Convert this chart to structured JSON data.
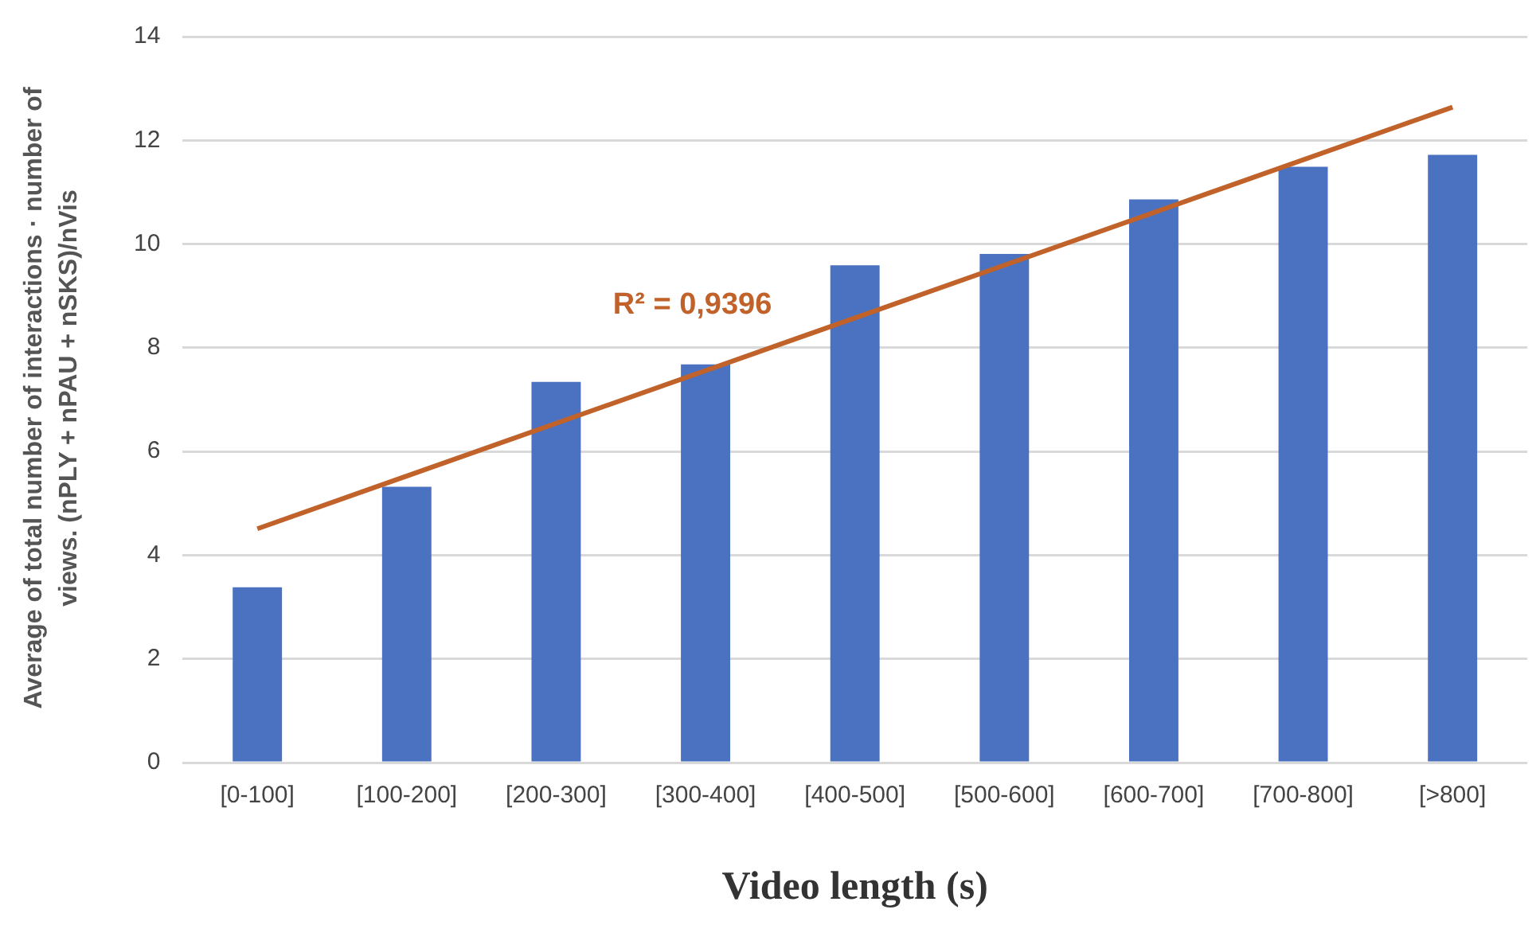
{
  "chart_data": {
    "type": "bar",
    "xlabel": "Video length (s)",
    "ylabel": "Average of total number of interactions · number of views. (nPLY + nPAU + nSKS)/nVis",
    "categories": [
      "[0-100]",
      "[100-200]",
      "[200-300]",
      "[300-400]",
      "[400-500]",
      "[500-600]",
      "[600-700]",
      "[700-800]",
      "[>800]"
    ],
    "series": [
      {
        "color": "#4a72c0",
        "values": [
          3.38,
          5.32,
          7.34,
          7.68,
          9.59,
          9.81,
          10.86,
          11.49,
          11.72
        ]
      },
      {
        "type": "line",
        "color": "#c0622a",
        "x": [
          "[0-100]",
          "[>800]"
        ],
        "values": [
          4.51,
          12.64
        ]
      }
    ],
    "ylim": [
      0,
      14
    ],
    "yticks": [
      0,
      2,
      4,
      6,
      8,
      10,
      12,
      14
    ],
    "grid": "y",
    "legend": false,
    "marker": "none",
    "line_style": "solid",
    "annotations": [
      "R² = 0,9396"
    ]
  }
}
